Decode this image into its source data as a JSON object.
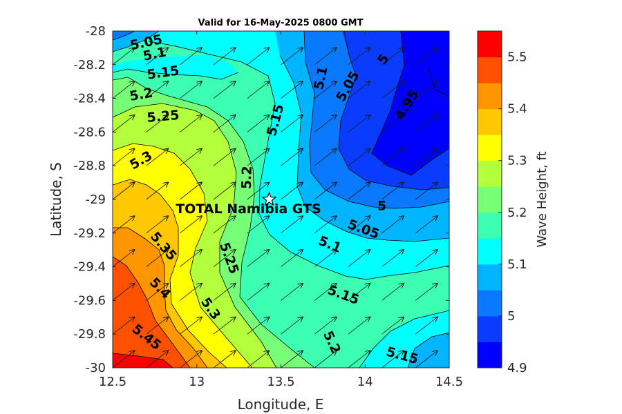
{
  "chart_data": {
    "type": "contour",
    "title": "Valid for 16-May-2025 0800 GMT",
    "xlabel": "Longitude, E",
    "ylabel": "Latitude, S",
    "xlim": [
      12.5,
      14.5
    ],
    "ylim": [
      -30,
      -28
    ],
    "x_ticks": [
      "12.5",
      "13",
      "13.5",
      "14",
      "14.5"
    ],
    "y_ticks": [
      "-30",
      "-29.8",
      "-29.6",
      "-29.4",
      "-29.2",
      "-29",
      "-28.8",
      "-28.6",
      "-28.4",
      "-28.2",
      "-28"
    ],
    "colorbar": {
      "label": "Wave Height, ft",
      "range": [
        4.9,
        5.55
      ],
      "ticks": [
        "4.9",
        "5",
        "5.1",
        "5.2",
        "5.3",
        "5.4",
        "5.5"
      ],
      "level_step": 0.05,
      "colors": [
        "#0000ff",
        "#0a3cff",
        "#0a78ff",
        "#00b4ff",
        "#00ffff",
        "#3cffb4",
        "#78ff78",
        "#b4ff3c",
        "#ffff00",
        "#ffc800",
        "#ff9600",
        "#ff5000",
        "#ff0000"
      ]
    },
    "contour_labels": [
      {
        "text": "5.05",
        "lon": 12.7,
        "lat": -28.07,
        "angle": -12
      },
      {
        "text": "5.1",
        "lon": 12.75,
        "lat": -28.14,
        "angle": -12
      },
      {
        "text": "5.15",
        "lon": 12.8,
        "lat": -28.25,
        "angle": -8
      },
      {
        "text": "5.2",
        "lon": 12.67,
        "lat": -28.38,
        "angle": -10
      },
      {
        "text": "5.25",
        "lon": 12.8,
        "lat": -28.51,
        "angle": -5
      },
      {
        "text": "5.3",
        "lon": 12.67,
        "lat": -28.77,
        "angle": -30
      },
      {
        "text": "5.35",
        "lon": 12.8,
        "lat": -29.28,
        "angle": 50
      },
      {
        "text": "5.4",
        "lon": 12.78,
        "lat": -29.53,
        "angle": 45
      },
      {
        "text": "5.45",
        "lon": 12.7,
        "lat": -29.82,
        "angle": 38
      },
      {
        "text": "5.3",
        "lon": 13.08,
        "lat": -29.65,
        "angle": 55
      },
      {
        "text": "5.25",
        "lon": 13.19,
        "lat": -29.35,
        "angle": 70
      },
      {
        "text": "5.2",
        "lon": 13.3,
        "lat": -28.87,
        "angle": -88
      },
      {
        "text": "5.15",
        "lon": 13.47,
        "lat": -28.53,
        "angle": -75
      },
      {
        "text": "5.1",
        "lon": 13.74,
        "lat": -28.28,
        "angle": -78
      },
      {
        "text": "5.05",
        "lon": 13.9,
        "lat": -28.33,
        "angle": -60
      },
      {
        "text": "5",
        "lon": 14.11,
        "lat": -28.17,
        "angle": -55
      },
      {
        "text": "4.95",
        "lon": 14.25,
        "lat": -28.44,
        "angle": -58
      },
      {
        "text": "5",
        "lon": 14.1,
        "lat": -29.04,
        "angle": 0
      },
      {
        "text": "5.05",
        "lon": 13.99,
        "lat": -29.18,
        "angle": 20
      },
      {
        "text": "5.1",
        "lon": 13.79,
        "lat": -29.27,
        "angle": 22
      },
      {
        "text": "5.15",
        "lon": 13.87,
        "lat": -29.57,
        "angle": 20
      },
      {
        "text": "5.2",
        "lon": 13.8,
        "lat": -29.85,
        "angle": 65
      },
      {
        "text": "5.15",
        "lon": 14.22,
        "lat": -29.93,
        "angle": 15
      }
    ],
    "site": {
      "name": "TOTAL Namibia GTS",
      "lon": 13.43,
      "lat": -29.0
    },
    "vectors": "wind arrows pointing to the northeast on a regular grid"
  }
}
